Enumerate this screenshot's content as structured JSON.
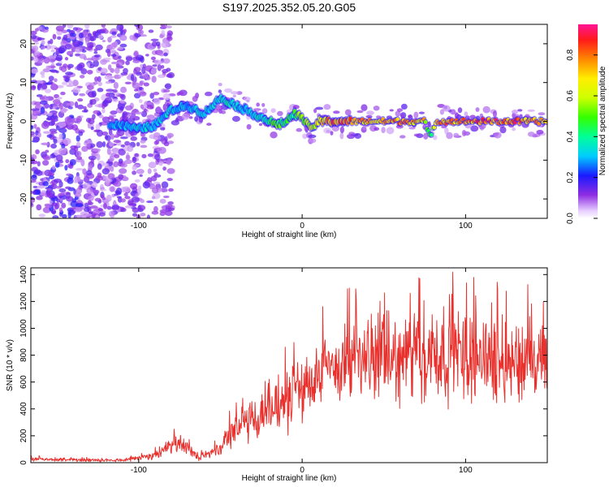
{
  "title": "S197.2025.352.05.20.G05",
  "chart_data": [
    {
      "type": "heatmap",
      "xlabel": "Height of straight line (km)",
      "ylabel": "Frequency (Hz)",
      "xlim": [
        -166,
        150
      ],
      "ylim": [
        -25,
        25
      ],
      "xticks": [
        -100,
        0,
        100
      ],
      "yticks": [
        -20,
        -10,
        0,
        10,
        20
      ],
      "colorbar": {
        "label": "Normalized spectral amplitude",
        "range": [
          0,
          0.95
        ],
        "ticks": [
          0.0,
          0.2,
          0.4,
          0.6,
          0.8
        ]
      },
      "ridge": {
        "x": [
          -110,
          -100,
          -90,
          -80,
          -70,
          -60,
          -50,
          -45,
          -40,
          -35,
          -30,
          -25,
          -20,
          -15,
          -10,
          -5,
          0,
          5,
          10,
          20,
          30,
          40,
          50,
          60,
          70,
          75,
          78,
          80,
          82,
          90,
          100,
          110,
          120,
          130,
          140,
          150
        ],
        "freq": [
          -1,
          -2,
          -1,
          3,
          4,
          2,
          6,
          5,
          4,
          3,
          2,
          1,
          0,
          -1,
          0,
          2,
          1,
          -2,
          0,
          0,
          0,
          0,
          0,
          0,
          0,
          0,
          -4,
          -2,
          0,
          0,
          0,
          0,
          0,
          0,
          0,
          0
        ],
        "amp": [
          0.3,
          0.35,
          0.35,
          0.35,
          0.3,
          0.35,
          0.35,
          0.4,
          0.35,
          0.3,
          0.35,
          0.4,
          0.45,
          0.5,
          0.45,
          0.5,
          0.55,
          0.6,
          0.7,
          0.85,
          0.8,
          0.75,
          0.8,
          0.8,
          0.75,
          0.7,
          0.45,
          0.5,
          0.75,
          0.8,
          0.8,
          0.85,
          0.85,
          0.85,
          0.8,
          0.75
        ]
      }
    },
    {
      "type": "line",
      "xlabel": "Height of straight line (km)",
      "ylabel": "SNR (10 * v/v)",
      "xlim": [
        -166,
        150
      ],
      "ylim": [
        0,
        1450
      ],
      "xticks": [
        -100,
        0,
        100
      ],
      "yticks": [
        0,
        200,
        400,
        600,
        800,
        1000,
        1200,
        1400
      ],
      "series": [
        {
          "name": "SNR",
          "color": "#e8302c",
          "x": [
            -166,
            -150,
            -130,
            -110,
            -100,
            -90,
            -80,
            -75,
            -70,
            -65,
            -60,
            -50,
            -45,
            -40,
            -35,
            -30,
            -20,
            -10,
            0,
            10,
            20,
            30,
            40,
            50,
            60,
            70,
            80,
            90,
            100,
            110,
            120,
            130,
            140,
            150
          ],
          "y": [
            25,
            20,
            20,
            20,
            35,
            60,
            110,
            150,
            100,
            60,
            50,
            90,
            200,
            260,
            330,
            320,
            380,
            460,
            560,
            650,
            720,
            750,
            780,
            780,
            760,
            800,
            820,
            820,
            800,
            800,
            780,
            760,
            740,
            720
          ],
          "noise": [
            15,
            12,
            12,
            12,
            20,
            35,
            60,
            80,
            60,
            35,
            30,
            55,
            100,
            140,
            180,
            170,
            190,
            220,
            240,
            260,
            280,
            280,
            290,
            300,
            310,
            340,
            380,
            360,
            330,
            330,
            320,
            310,
            300,
            300
          ]
        }
      ]
    }
  ]
}
